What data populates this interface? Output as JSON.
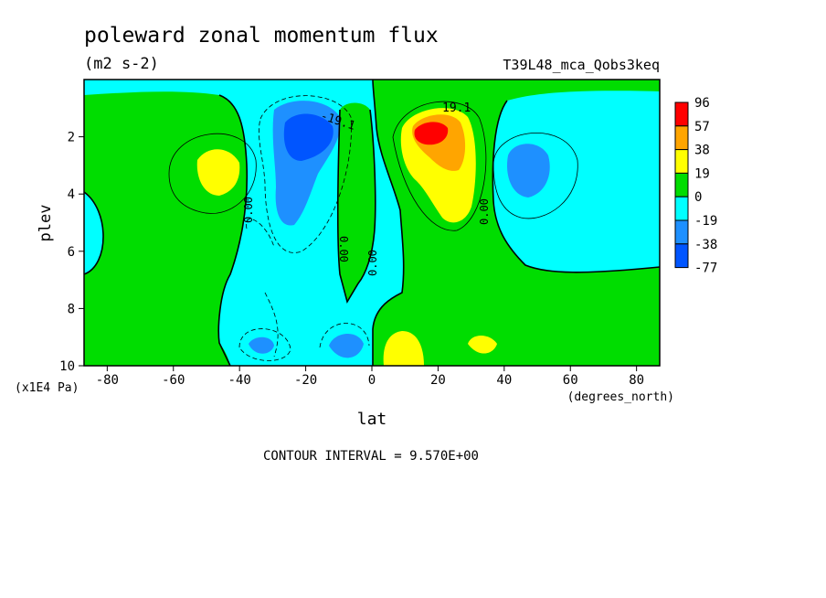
{
  "chart_data": {
    "type": "heatmap",
    "title": "poleward zonal momentum flux",
    "units": "(m2 s-2)",
    "run_label": "T39L48_mca_Qobs3keq",
    "xlabel": "lat",
    "x_units": "(degrees_north)",
    "ylabel": "plev",
    "y_units": "(x1E4 Pa)",
    "xlim": [
      -87,
      87
    ],
    "ylim": [
      0,
      10
    ],
    "y_inverted": true,
    "grid": false,
    "x_ticks": [
      "-80",
      "-60",
      "-40",
      "-20",
      "0",
      "20",
      "40",
      "60",
      "80"
    ],
    "y_ticks": [
      "2",
      "4",
      "6",
      "8",
      "10"
    ],
    "contour_interval_label": "CONTOUR INTERVAL = 9.570E+00",
    "contour_labels": [
      "-19.1",
      "19.1",
      "0.00",
      "0.00",
      "0.00",
      "0.00"
    ],
    "colorbar": {
      "placement": "right",
      "labels": [
        "96",
        "57",
        "38",
        "19",
        "0",
        "-19",
        "-38",
        "-77"
      ],
      "colors": [
        "#ff0000",
        "#ffa500",
        "#ffff00",
        "#00dd00",
        "#00ffff",
        "#1e90ff",
        "#0055ff"
      ]
    },
    "features": [
      {
        "sign": "negative",
        "level": "-38",
        "lat": -22,
        "plev": 2.0
      },
      {
        "sign": "positive",
        "level": "96",
        "lat": 18,
        "plev": 2.0
      },
      {
        "sign": "positive",
        "level": "19",
        "lat": -47,
        "plev": 3.2
      },
      {
        "sign": "negative",
        "level": "-19",
        "lat": 48,
        "plev": 3.2
      },
      {
        "sign": "positive",
        "level": "19",
        "lat": 7,
        "plev": 9.3
      },
      {
        "sign": "positive",
        "level": "19",
        "lat": 33,
        "plev": 9.2
      },
      {
        "sign": "negative",
        "level": "-19",
        "lat": -33,
        "plev": 9.3
      },
      {
        "sign": "negative",
        "level": "-19",
        "lat": -8,
        "plev": 9.3
      }
    ]
  }
}
